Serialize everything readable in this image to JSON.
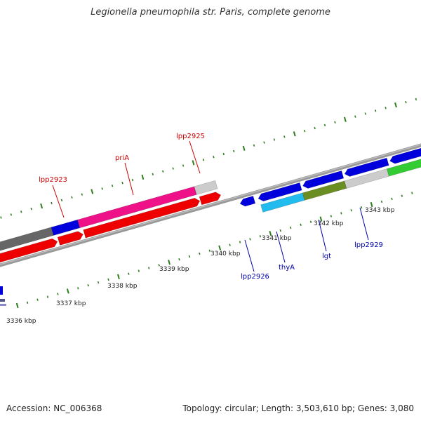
{
  "title": "Legionella pneumophila str. Paris, complete genome",
  "footer": {
    "accession": "Accession: NC_006368",
    "info": "Topology: circular; Length: 3,503,610 bp; Genes: 3,080"
  },
  "colors": {
    "backbone": "#888888",
    "tick": "#2e7d1e",
    "forward_label": "#cc0000",
    "reverse_label": "#0000aa"
  },
  "ticks": [
    {
      "kbp": 3336,
      "label": "3336 kbp"
    },
    {
      "kbp": 3337,
      "label": "3337 kbp"
    },
    {
      "kbp": 3338,
      "label": "3338 kbp"
    },
    {
      "kbp": 3339,
      "label": "3339 kbp"
    },
    {
      "kbp": 3340,
      "label": "3340 kbp"
    },
    {
      "kbp": 3341,
      "label": "3341 kbp"
    },
    {
      "kbp": 3342,
      "label": "3342 kbp"
    },
    {
      "kbp": 3343,
      "label": "3343 kbp"
    }
  ],
  "gene_labels": [
    {
      "name": "lpp2923",
      "strand": "forward"
    },
    {
      "name": "priA",
      "strand": "forward"
    },
    {
      "name": "lpp2925",
      "strand": "forward"
    },
    {
      "name": "lpp2926",
      "strand": "reverse"
    },
    {
      "name": "thyA",
      "strand": "reverse"
    },
    {
      "name": "lgt",
      "strand": "reverse"
    },
    {
      "name": "lpp2929",
      "strand": "reverse"
    }
  ],
  "features": [
    {
      "track": "cog_upper",
      "color": "#666666"
    },
    {
      "track": "cog_upper",
      "color": "#0000dd"
    },
    {
      "track": "cog_upper",
      "color": "#ee1188"
    },
    {
      "track": "cog_upper",
      "color": "#cccccc"
    },
    {
      "track": "cds_upper",
      "color": "#ee0000"
    },
    {
      "track": "cds_upper",
      "color": "#ee0000"
    },
    {
      "track": "cds_upper",
      "color": "#ee0000"
    },
    {
      "track": "cds_upper",
      "color": "#ee0000"
    },
    {
      "track": "cds_lower",
      "color": "#0000dd"
    },
    {
      "track": "cds_lower",
      "color": "#0000dd"
    },
    {
      "track": "cds_lower",
      "color": "#0000dd"
    },
    {
      "track": "cds_lower",
      "color": "#0000dd"
    },
    {
      "track": "cds_lower",
      "color": "#0000dd"
    },
    {
      "track": "cog_lower",
      "color": "#22bbee"
    },
    {
      "track": "cog_lower",
      "color": "#6b8e23"
    },
    {
      "track": "cog_lower",
      "color": "#cccccc"
    },
    {
      "track": "cog_lower",
      "color": "#33cc33"
    },
    {
      "track": "cog_edge",
      "color": "#0000dd"
    },
    {
      "track": "cog_edge",
      "color": "#555588"
    }
  ]
}
